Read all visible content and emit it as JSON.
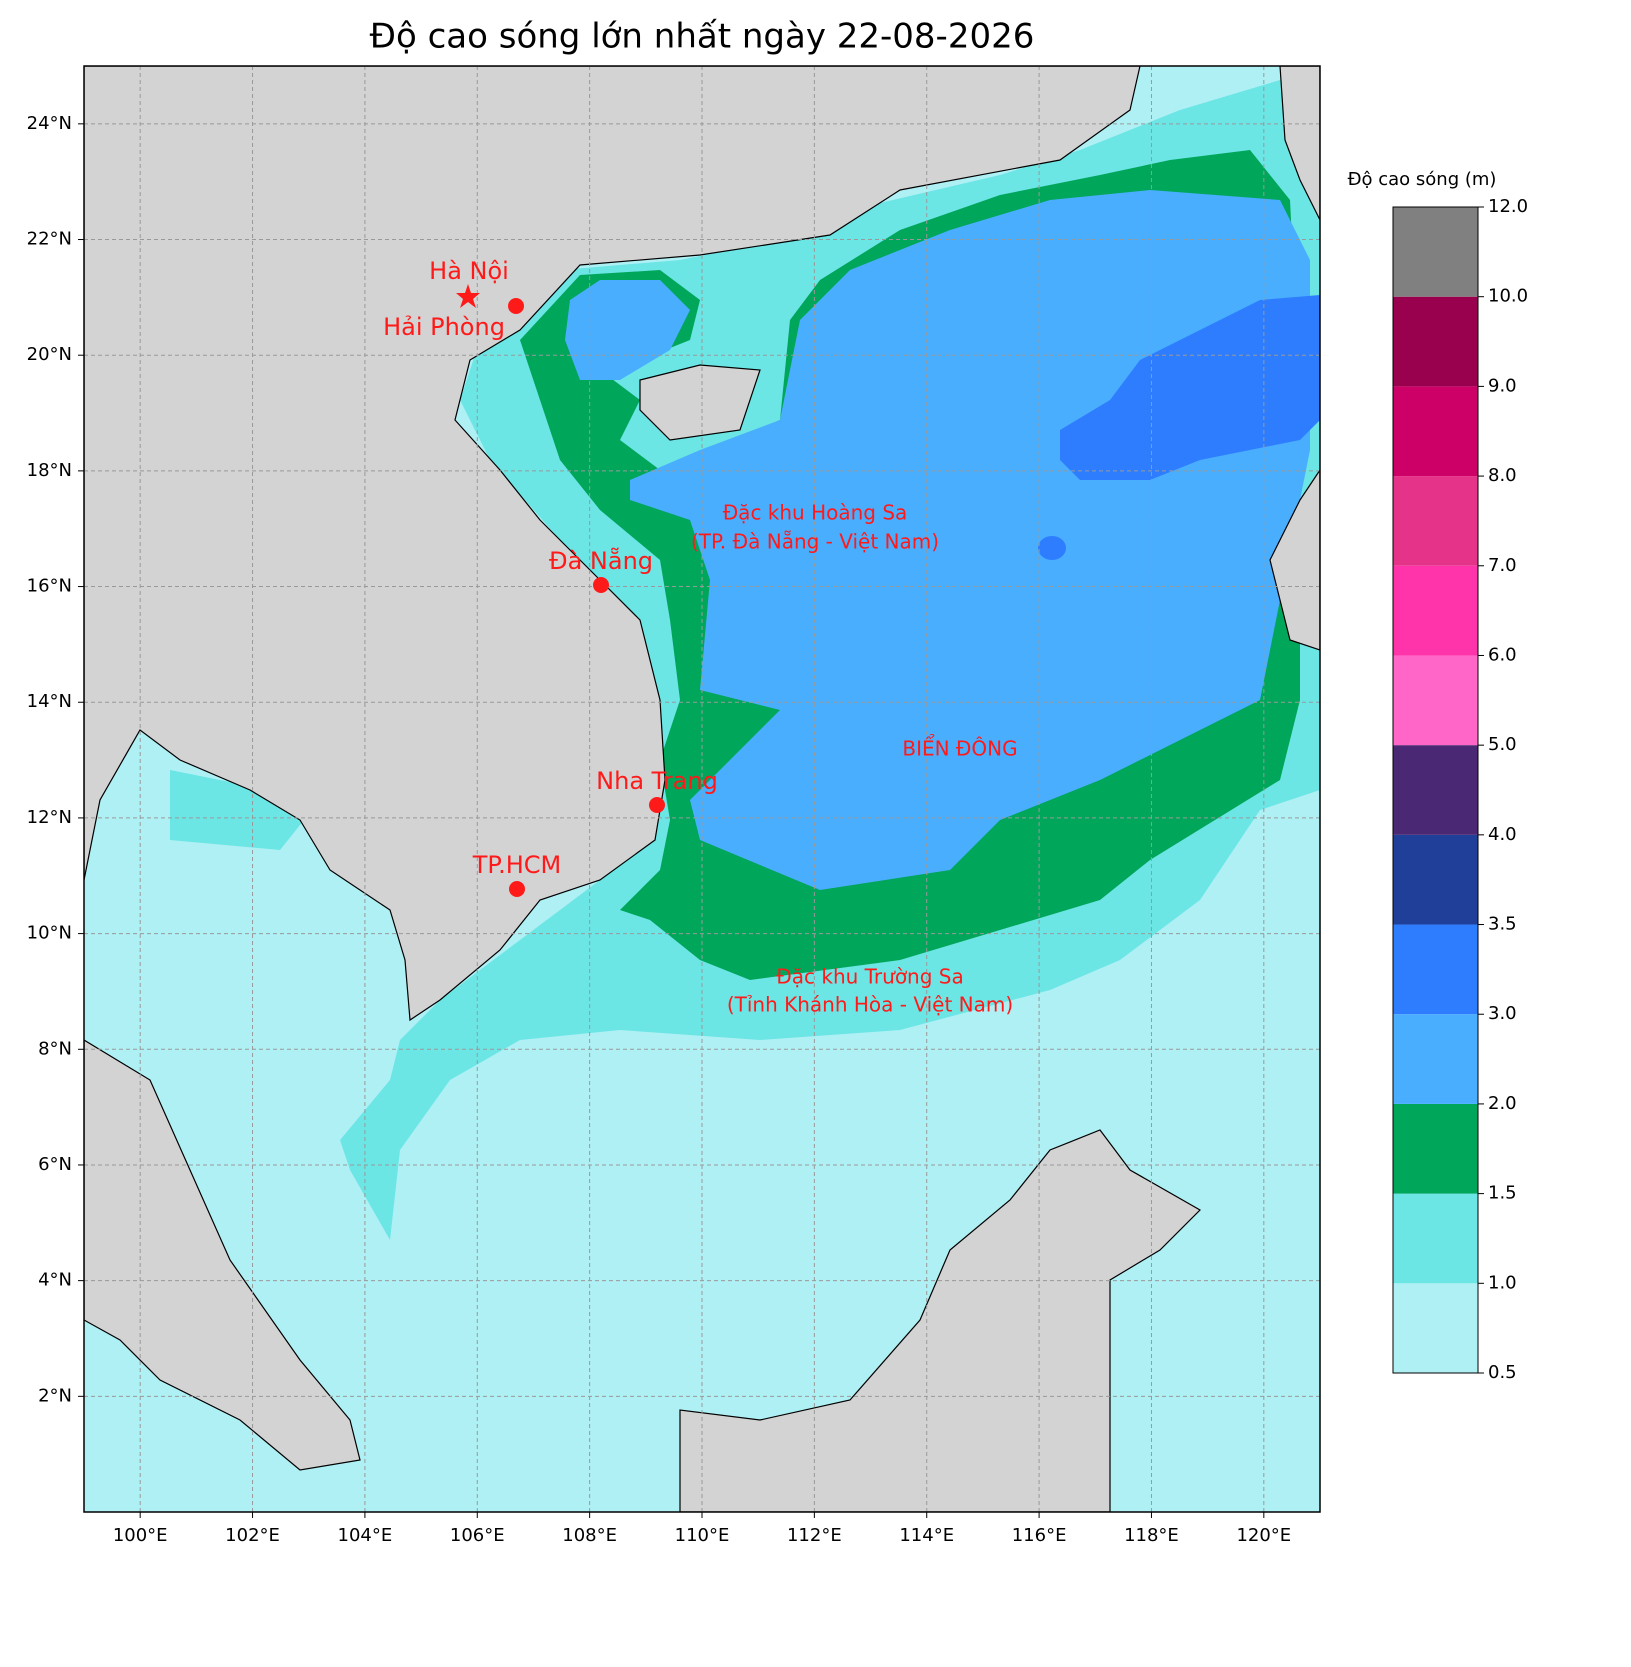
{
  "title": "Độ cao sóng lớn nhất ngày 22-08-2026",
  "map": {
    "xlim": [
      99,
      121
    ],
    "ylim": [
      0,
      25
    ],
    "grid": true,
    "xticks": [
      {
        "value": 100,
        "label": "100°E"
      },
      {
        "value": 102,
        "label": "102°E"
      },
      {
        "value": 104,
        "label": "104°E"
      },
      {
        "value": 106,
        "label": "106°E"
      },
      {
        "value": 108,
        "label": "108°E"
      },
      {
        "value": 110,
        "label": "110°E"
      },
      {
        "value": 112,
        "label": "112°E"
      },
      {
        "value": 114,
        "label": "114°E"
      },
      {
        "value": 116,
        "label": "116°E"
      },
      {
        "value": 118,
        "label": "118°E"
      },
      {
        "value": 120,
        "label": "120°E"
      }
    ],
    "yticks": [
      {
        "value": 2,
        "label": "2°N"
      },
      {
        "value": 4,
        "label": "4°N"
      },
      {
        "value": 6,
        "label": "6°N"
      },
      {
        "value": 8,
        "label": "8°N"
      },
      {
        "value": 10,
        "label": "10°N"
      },
      {
        "value": 12,
        "label": "12°N"
      },
      {
        "value": 14,
        "label": "14°N"
      },
      {
        "value": 16,
        "label": "16°N"
      },
      {
        "value": 18,
        "label": "18°N"
      },
      {
        "value": 20,
        "label": "20°N"
      },
      {
        "value": 22,
        "label": "22°N"
      },
      {
        "value": 24,
        "label": "24°N"
      }
    ]
  },
  "cities": [
    "Hà Nội",
    "Hải Phòng",
    "Đà Nẵng",
    "Nha Trang",
    "TP.HCM"
  ],
  "annotations": [
    "Đặc khu Hoàng Sa",
    "(TP. Đà Nẵng - Việt Nam)",
    "BIỂN ĐÔNG",
    "Đặc khu Trường Sa",
    "(Tỉnh Khánh Hòa - Việt Nam)"
  ],
  "colorbar": {
    "label": "Độ cao sóng (m)",
    "ticks": [
      0.5,
      {
        "value": 1,
        "label": "1.0"
      },
      1.5,
      {
        "value": 2,
        "label": "2.0"
      },
      {
        "value": 3,
        "label": "3.0"
      },
      3.5,
      {
        "value": 4,
        "label": "4.0"
      },
      {
        "value": 5,
        "label": "5.0"
      },
      {
        "value": 6,
        "label": "6.0"
      },
      {
        "value": 7,
        "label": "7.0"
      },
      {
        "value": 8,
        "label": "8.0"
      },
      {
        "value": 9,
        "label": "9.0"
      },
      {
        "value": 10,
        "label": "10.0"
      },
      {
        "value": 12,
        "label": "12.0"
      }
    ],
    "colors": [
      "#aff0f5",
      "#6ce5e5",
      "#00a65a",
      "#4aaeff",
      "#2e7dff",
      "#1f3f99",
      "#4b2873",
      "#ff66c8",
      "#ff33aa",
      "#e6338a",
      "#cc0066",
      "#99004d",
      "#808080"
    ]
  }
}
